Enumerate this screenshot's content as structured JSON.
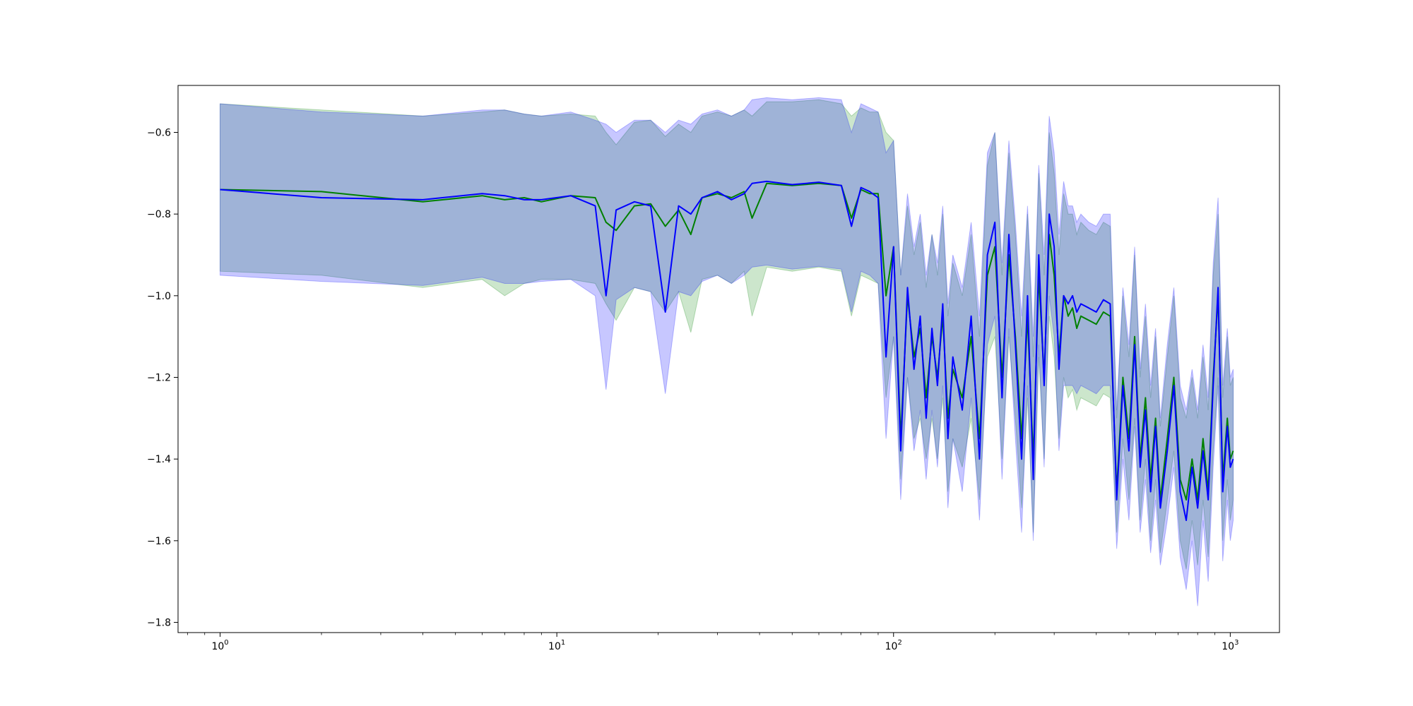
{
  "colors": {
    "series_a_line": "#008000",
    "series_a_band": "#008000",
    "series_b_line": "#0000ff",
    "series_b_band": "#0000ff",
    "background": "#ffffff",
    "axis": "#000000"
  },
  "chart_data": {
    "type": "line",
    "title": "",
    "xlabel": "",
    "ylabel": "",
    "xscale": "log",
    "xlim": [
      0.75,
      1400
    ],
    "ylim": [
      -1.825,
      -0.485
    ],
    "grid": false,
    "legend": "none",
    "x_ticks": [
      {
        "value": 1,
        "base": "10",
        "exp": "0"
      },
      {
        "value": 10,
        "base": "10",
        "exp": "1"
      },
      {
        "value": 100,
        "base": "10",
        "exp": "2"
      },
      {
        "value": 1000,
        "base": "10",
        "exp": "3"
      }
    ],
    "y_ticks": [
      {
        "value": -0.6,
        "label": "−0.6"
      },
      {
        "value": -0.8,
        "label": "−0.8"
      },
      {
        "value": -1.0,
        "label": "−1.0"
      },
      {
        "value": -1.2,
        "label": "−1.2"
      },
      {
        "value": -1.4,
        "label": "−1.4"
      },
      {
        "value": -1.6,
        "label": "−1.6"
      },
      {
        "value": -1.8,
        "label": "−1.8"
      }
    ],
    "x": [
      1,
      2,
      4,
      6,
      7,
      8,
      9,
      11,
      13,
      14,
      15,
      17,
      19,
      21,
      23,
      25,
      27,
      30,
      33,
      36,
      38,
      42,
      50,
      60,
      70,
      75,
      80,
      85,
      90,
      95,
      100,
      105,
      110,
      115,
      120,
      125,
      130,
      135,
      140,
      145,
      150,
      160,
      170,
      180,
      190,
      200,
      210,
      220,
      230,
      240,
      250,
      260,
      270,
      280,
      290,
      300,
      310,
      320,
      330,
      340,
      350,
      360,
      380,
      400,
      420,
      440,
      460,
      480,
      500,
      520,
      540,
      560,
      580,
      600,
      620,
      650,
      680,
      710,
      740,
      770,
      800,
      830,
      860,
      890,
      920,
      950,
      980,
      1000,
      1020
    ],
    "series": [
      {
        "values": [
          -0.74,
          -0.745,
          -0.77,
          -0.755,
          -0.765,
          -0.76,
          -0.77,
          -0.755,
          -0.76,
          -0.82,
          -0.84,
          -0.78,
          -0.775,
          -0.83,
          -0.79,
          -0.85,
          -0.76,
          -0.75,
          -0.76,
          -0.745,
          -0.81,
          -0.725,
          -0.73,
          -0.725,
          -0.73,
          -0.81,
          -0.74,
          -0.75,
          -0.75,
          -1.0,
          -0.88,
          -1.35,
          -1.0,
          -1.15,
          -1.08,
          -1.25,
          -1.1,
          -1.2,
          -1.05,
          -1.3,
          -1.18,
          -1.25,
          -1.1,
          -1.35,
          -0.95,
          -0.88,
          -1.2,
          -0.9,
          -1.1,
          -1.35,
          -1.05,
          -1.4,
          -0.95,
          -1.2,
          -0.85,
          -0.95,
          -1.15,
          -1.0,
          -1.05,
          -1.03,
          -1.08,
          -1.05,
          -1.06,
          -1.07,
          -1.04,
          -1.05,
          -1.48,
          -1.2,
          -1.35,
          -1.1,
          -1.4,
          -1.25,
          -1.45,
          -1.3,
          -1.5,
          -1.35,
          -1.2,
          -1.45,
          -1.5,
          -1.4,
          -1.5,
          -1.35,
          -1.48,
          -1.2,
          -1.0,
          -1.45,
          -1.3,
          -1.4,
          -1.38
        ],
        "lower": [
          -0.94,
          -0.95,
          -0.98,
          -0.96,
          -1.0,
          -0.97,
          -0.96,
          -0.96,
          -0.97,
          -1.02,
          -1.06,
          -0.98,
          -0.99,
          -1.04,
          -0.99,
          -1.09,
          -0.96,
          -0.95,
          -0.97,
          -0.94,
          -1.05,
          -0.93,
          -0.94,
          -0.93,
          -0.94,
          -1.05,
          -0.95,
          -0.96,
          -0.97,
          -1.25,
          -1.1,
          -1.45,
          -1.2,
          -1.35,
          -1.3,
          -1.4,
          -1.3,
          -1.4,
          -1.25,
          -1.48,
          -1.35,
          -1.42,
          -1.3,
          -1.5,
          -1.15,
          -1.1,
          -1.4,
          -1.1,
          -1.3,
          -1.52,
          -1.25,
          -1.58,
          -1.15,
          -1.4,
          -1.05,
          -1.15,
          -1.35,
          -1.2,
          -1.25,
          -1.23,
          -1.28,
          -1.25,
          -1.26,
          -1.27,
          -1.24,
          -1.25,
          -1.58,
          -1.35,
          -1.5,
          -1.3,
          -1.55,
          -1.4,
          -1.6,
          -1.45,
          -1.63,
          -1.5,
          -1.38,
          -1.6,
          -1.67,
          -1.55,
          -1.66,
          -1.5,
          -1.64,
          -1.38,
          -1.2,
          -1.6,
          -1.45,
          -1.55,
          -1.5
        ],
        "upper": [
          -0.53,
          -0.545,
          -0.56,
          -0.55,
          -0.545,
          -0.555,
          -0.56,
          -0.555,
          -0.56,
          -0.6,
          -0.63,
          -0.575,
          -0.57,
          -0.61,
          -0.58,
          -0.6,
          -0.56,
          -0.55,
          -0.56,
          -0.545,
          -0.56,
          -0.525,
          -0.525,
          -0.52,
          -0.53,
          -0.56,
          -0.54,
          -0.55,
          -0.55,
          -0.6,
          -0.62,
          -0.95,
          -0.78,
          -0.9,
          -0.82,
          -0.98,
          -0.85,
          -0.95,
          -0.8,
          -1.05,
          -0.92,
          -1.0,
          -0.85,
          -1.1,
          -0.68,
          -0.6,
          -0.95,
          -0.65,
          -0.85,
          -1.1,
          -0.8,
          -1.15,
          -0.7,
          -0.95,
          -0.6,
          -0.7,
          -0.9,
          -0.75,
          -0.8,
          -0.8,
          -0.85,
          -0.82,
          -0.84,
          -0.85,
          -0.82,
          -0.83,
          -1.3,
          -1.0,
          -1.15,
          -0.9,
          -1.2,
          -1.05,
          -1.25,
          -1.1,
          -1.32,
          -1.15,
          -1.0,
          -1.25,
          -1.3,
          -1.2,
          -1.3,
          -1.15,
          -1.28,
          -0.95,
          -0.8,
          -1.25,
          -1.1,
          -1.22,
          -1.2
        ]
      },
      {
        "values": [
          -0.74,
          -0.76,
          -0.765,
          -0.75,
          -0.755,
          -0.765,
          -0.765,
          -0.755,
          -0.78,
          -1.0,
          -0.79,
          -0.77,
          -0.78,
          -1.04,
          -0.78,
          -0.8,
          -0.76,
          -0.745,
          -0.765,
          -0.75,
          -0.725,
          -0.72,
          -0.728,
          -0.722,
          -0.73,
          -0.83,
          -0.735,
          -0.745,
          -0.76,
          -1.15,
          -0.88,
          -1.38,
          -0.98,
          -1.18,
          -1.05,
          -1.3,
          -1.08,
          -1.22,
          -1.02,
          -1.35,
          -1.15,
          -1.28,
          -1.05,
          -1.4,
          -0.9,
          -0.82,
          -1.25,
          -0.85,
          -1.12,
          -1.4,
          -1.0,
          -1.45,
          -0.9,
          -1.22,
          -0.8,
          -0.88,
          -1.18,
          -1.0,
          -1.02,
          -1.0,
          -1.04,
          -1.02,
          -1.03,
          -1.04,
          -1.01,
          -1.02,
          -1.5,
          -1.22,
          -1.38,
          -1.12,
          -1.42,
          -1.28,
          -1.48,
          -1.32,
          -1.52,
          -1.38,
          -1.22,
          -1.48,
          -1.55,
          -1.42,
          -1.52,
          -1.38,
          -1.5,
          -1.22,
          -0.98,
          -1.48,
          -1.32,
          -1.42,
          -1.4
        ],
        "lower": [
          -0.95,
          -0.965,
          -0.975,
          -0.955,
          -0.97,
          -0.97,
          -0.965,
          -0.96,
          -1.0,
          -1.23,
          -1.01,
          -0.98,
          -0.99,
          -1.24,
          -0.99,
          -1.0,
          -0.965,
          -0.95,
          -0.97,
          -0.95,
          -0.93,
          -0.925,
          -0.935,
          -0.928,
          -0.935,
          -1.04,
          -0.94,
          -0.95,
          -0.97,
          -1.35,
          -1.1,
          -1.5,
          -1.2,
          -1.38,
          -1.28,
          -1.45,
          -1.28,
          -1.42,
          -1.22,
          -1.52,
          -1.35,
          -1.48,
          -1.25,
          -1.55,
          -1.12,
          -1.05,
          -1.45,
          -1.08,
          -1.35,
          -1.58,
          -1.22,
          -1.6,
          -1.12,
          -1.42,
          -1.0,
          -1.1,
          -1.38,
          -1.22,
          -1.22,
          -1.22,
          -1.24,
          -1.22,
          -1.23,
          -1.24,
          -1.22,
          -1.22,
          -1.62,
          -1.4,
          -1.55,
          -1.32,
          -1.58,
          -1.45,
          -1.63,
          -1.5,
          -1.66,
          -1.55,
          -1.42,
          -1.64,
          -1.72,
          -1.6,
          -1.76,
          -1.55,
          -1.7,
          -1.42,
          -1.22,
          -1.65,
          -1.5,
          -1.6,
          -1.55
        ],
        "upper": [
          -0.53,
          -0.55,
          -0.56,
          -0.545,
          -0.545,
          -0.555,
          -0.56,
          -0.55,
          -0.57,
          -0.58,
          -0.6,
          -0.57,
          -0.57,
          -0.6,
          -0.57,
          -0.58,
          -0.555,
          -0.545,
          -0.56,
          -0.545,
          -0.52,
          -0.515,
          -0.52,
          -0.515,
          -0.52,
          -0.6,
          -0.53,
          -0.54,
          -0.55,
          -0.65,
          -0.62,
          -0.95,
          -0.75,
          -0.88,
          -0.8,
          -0.95,
          -0.85,
          -0.92,
          -0.78,
          -1.02,
          -0.9,
          -0.98,
          -0.82,
          -1.05,
          -0.65,
          -0.6,
          -0.92,
          -0.62,
          -0.82,
          -1.05,
          -0.78,
          -1.1,
          -0.68,
          -0.9,
          -0.56,
          -0.65,
          -0.85,
          -0.72,
          -0.78,
          -0.78,
          -0.82,
          -0.8,
          -0.82,
          -0.83,
          -0.8,
          -0.8,
          -1.28,
          -0.98,
          -1.12,
          -0.88,
          -1.18,
          -1.02,
          -1.22,
          -1.08,
          -1.3,
          -1.12,
          -0.98,
          -1.22,
          -1.28,
          -1.18,
          -1.28,
          -1.12,
          -1.25,
          -0.92,
          -0.76,
          -1.22,
          -1.08,
          -1.2,
          -1.18
        ]
      }
    ]
  }
}
